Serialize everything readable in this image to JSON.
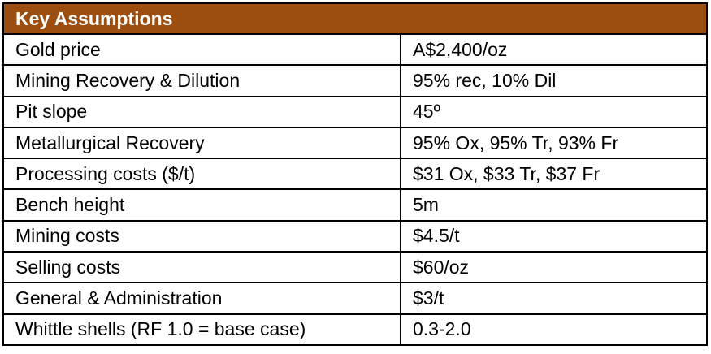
{
  "header": {
    "title": "Key Assumptions",
    "color": "#9c4e10"
  },
  "rows": [
    {
      "label": "Gold price",
      "value": "A$2,400/oz"
    },
    {
      "label": "Mining Recovery & Dilution",
      "value": "95% rec, 10% Dil"
    },
    {
      "label": "Pit slope",
      "value": "45º"
    },
    {
      "label": "Metallurgical Recovery",
      "value": "95% Ox, 95% Tr, 93% Fr"
    },
    {
      "label": "Processing costs ($/t)",
      "value": "$31 Ox, $33 Tr, $37 Fr"
    },
    {
      "label": "Bench height",
      "value": "5m"
    },
    {
      "label": "Mining costs",
      "value": "$4.5/t"
    },
    {
      "label": "Selling costs",
      "value": "$60/oz"
    },
    {
      "label": "General & Administration",
      "value": "$3/t"
    },
    {
      "label": "Whittle shells (RF 1.0 = base case)",
      "value": "0.3-2.0"
    }
  ]
}
